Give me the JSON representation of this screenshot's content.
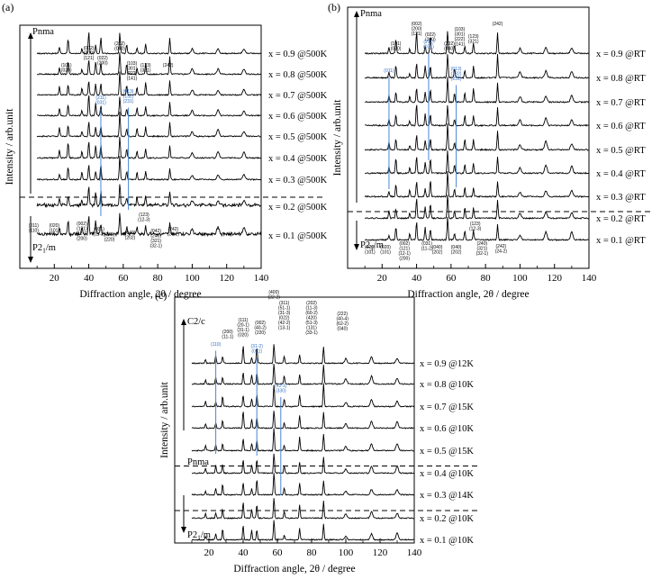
{
  "chart_data": [
    {
      "type": "line",
      "panel_label": "(a)",
      "xlabel": "Diffraction angle, 2θ / degree",
      "ylabel": "Intensity / arb.unit",
      "xlim": [
        0,
        140
      ],
      "xticks": [
        20,
        40,
        60,
        80,
        100,
        120,
        140
      ],
      "phase_labels": [
        "Pnma",
        "P2₁/m"
      ],
      "phase_boundary": "between x = 0.3 and x = 0.2",
      "series": [
        {
          "name": "x = 0.9 @500K"
        },
        {
          "name": "x = 0.8 @500K"
        },
        {
          "name": "x = 0.7 @500K"
        },
        {
          "name": "x = 0.6 @500K"
        },
        {
          "name": "x = 0.5 @500K"
        },
        {
          "name": "x = 0.4 @500K"
        },
        {
          "name": "x = 0.3 @500K"
        },
        {
          "name": "x = 0.2 @500K"
        },
        {
          "name": "x = 0.1 @500K"
        }
      ],
      "peaks": [
        {
          "x": 23,
          "intensity": 0.3
        },
        {
          "x": 28,
          "intensity": 0.55
        },
        {
          "x": 36,
          "intensity": 0.25
        },
        {
          "x": 40,
          "intensity": 0.8
        },
        {
          "x": 44,
          "intensity": 0.45
        },
        {
          "x": 47,
          "intensity": 0.55
        },
        {
          "x": 58,
          "intensity": 1.0
        },
        {
          "x": 62,
          "intensity": 0.35
        },
        {
          "x": 68,
          "intensity": 0.3
        },
        {
          "x": 73,
          "intensity": 0.45
        },
        {
          "x": 87,
          "intensity": 0.6
        },
        {
          "x": 100,
          "intensity": 0.2
        },
        {
          "x": 115,
          "intensity": 0.25
        },
        {
          "x": 130,
          "intensity": 0.22
        }
      ],
      "annotations_top": [
        "(101)\n(020)",
        "(002)\n(200)\n(121)",
        "(022)\n(200)",
        "(202)\n(040)",
        "(103)\n(301)\n(222)\n(141)",
        "(123)\n(321)",
        "(242)"
      ],
      "annotations_blue": [
        "(211)\n(031)",
        "(013)\n(132)\n(231)"
      ],
      "annotations_bottom": [
        "(011)\n(110)",
        "(020)\n(101)",
        "(002)\n(121)\n(12-1)\n(200)",
        "(031)\n(11-2)",
        "(022)\n(220)",
        "(040)\n(202)",
        "(123)\n(12-3)",
        "(042)\n(240)\n(321)\n(32-1)",
        "(242)\n(24-2)"
      ]
    },
    {
      "type": "line",
      "panel_label": "(b)",
      "xlabel": "Diffraction angle, 2θ / degree",
      "ylabel": "Intensity / arb.unit",
      "xlim": [
        0,
        140
      ],
      "xticks": [
        20,
        40,
        60,
        80,
        100,
        120,
        140
      ],
      "phase_labels": [
        "Pnma",
        "P2₁/m"
      ],
      "phase_boundary": "between x = 0.3 and x = 0.2",
      "series": [
        {
          "name": "x = 0.9 @RT"
        },
        {
          "name": "x = 0.8 @RT"
        },
        {
          "name": "x = 0.7 @RT"
        },
        {
          "name": "x = 0.6 @RT"
        },
        {
          "name": "x = 0.5 @RT"
        },
        {
          "name": "x = 0.4 @RT"
        },
        {
          "name": "x = 0.3 @RT"
        },
        {
          "name": "x = 0.2 @RT"
        },
        {
          "name": "x = 0.1 @RT"
        }
      ],
      "peaks": [
        {
          "x": 24,
          "intensity": 0.25
        },
        {
          "x": 28,
          "intensity": 0.5
        },
        {
          "x": 36,
          "intensity": 0.2
        },
        {
          "x": 40,
          "intensity": 0.75
        },
        {
          "x": 45,
          "intensity": 0.4
        },
        {
          "x": 48,
          "intensity": 0.55
        },
        {
          "x": 58,
          "intensity": 1.0
        },
        {
          "x": 62,
          "intensity": 0.3
        },
        {
          "x": 68,
          "intensity": 0.35
        },
        {
          "x": 73,
          "intensity": 0.45
        },
        {
          "x": 87,
          "intensity": 0.75
        },
        {
          "x": 100,
          "intensity": 0.2
        },
        {
          "x": 115,
          "intensity": 0.3
        },
        {
          "x": 130,
          "intensity": 0.25
        }
      ],
      "annotations_top": [
        "(101)\n(020)",
        "(002)\n(200)\n(121)",
        "(022)\n(200)",
        "(202)\n(040)",
        "(103)\n(301)\n(222)\n(141)",
        "(123)\n(321)",
        "(242)"
      ],
      "annotations_blue": [
        "(011)",
        "(211)\n(031)",
        "(013)\n(132)\n(231)"
      ],
      "annotations_bottom": [
        "(020)\n(101)",
        "(020)\n(101)",
        "(002)\n(121)\n(12-1)\n(200)",
        "(031)\n(11-2)",
        "(040)\n(202)",
        "(040)\n(202)",
        "(123)\n(12-3)",
        "(240)\n(321)\n(32-1)",
        "(242)\n(24-2)"
      ]
    },
    {
      "type": "line",
      "panel_label": "(c)",
      "xlabel": "Diffraction angle, 2θ / degree",
      "ylabel": "Intensity / arb.unit",
      "xlim": [
        0,
        140
      ],
      "xticks": [
        20,
        40,
        60,
        80,
        100,
        120,
        140
      ],
      "phase_labels": [
        "C2/c",
        "Pnma",
        "P2₁/m"
      ],
      "phase_boundaries": [
        "between x = 0.5 and x = 0.4",
        "between x = 0.3 and x = 0.2"
      ],
      "series": [
        {
          "name": "x = 0.9 @12K"
        },
        {
          "name": "x = 0.8 @10K"
        },
        {
          "name": "x = 0.7 @15K"
        },
        {
          "name": "x = 0.6 @10K"
        },
        {
          "name": "x = 0.5 @15K"
        },
        {
          "name": "x = 0.4 @10K"
        },
        {
          "name": "x = 0.3 @14K"
        },
        {
          "name": "x = 0.2 @10K"
        },
        {
          "name": "x = 0.1 @10K"
        }
      ],
      "peaks": [
        {
          "x": 18,
          "intensity": 0.2
        },
        {
          "x": 24,
          "intensity": 0.3
        },
        {
          "x": 28,
          "intensity": 0.4
        },
        {
          "x": 40,
          "intensity": 0.7
        },
        {
          "x": 45,
          "intensity": 0.35
        },
        {
          "x": 48,
          "intensity": 0.6
        },
        {
          "x": 58,
          "intensity": 1.0
        },
        {
          "x": 64,
          "intensity": 0.3
        },
        {
          "x": 73,
          "intensity": 0.5
        },
        {
          "x": 87,
          "intensity": 0.85
        },
        {
          "x": 100,
          "intensity": 0.2
        },
        {
          "x": 115,
          "intensity": 0.3
        },
        {
          "x": 130,
          "intensity": 0.3
        }
      ],
      "annotations_top": [
        "(111)\n(20-1)\n(31-1)\n(020)",
        "(200)\n(11-1)",
        "(002)\n(40-2)\n(220)",
        "(400)\n(22-2)",
        "(311)\n(51-1)\n(31-3)\n(022)\n(42-2)\n(13-1)",
        "(202)\n(11-3)\n(60-2)\n(420)\n(51-3)\n(131)\n(33-1)",
        "(222)\n(40-4)\n(62-2)\n(040)"
      ],
      "annotations_blue": [
        "(110)",
        "(31-2)\n(021)",
        "(42-1)\n(330)"
      ]
    }
  ]
}
